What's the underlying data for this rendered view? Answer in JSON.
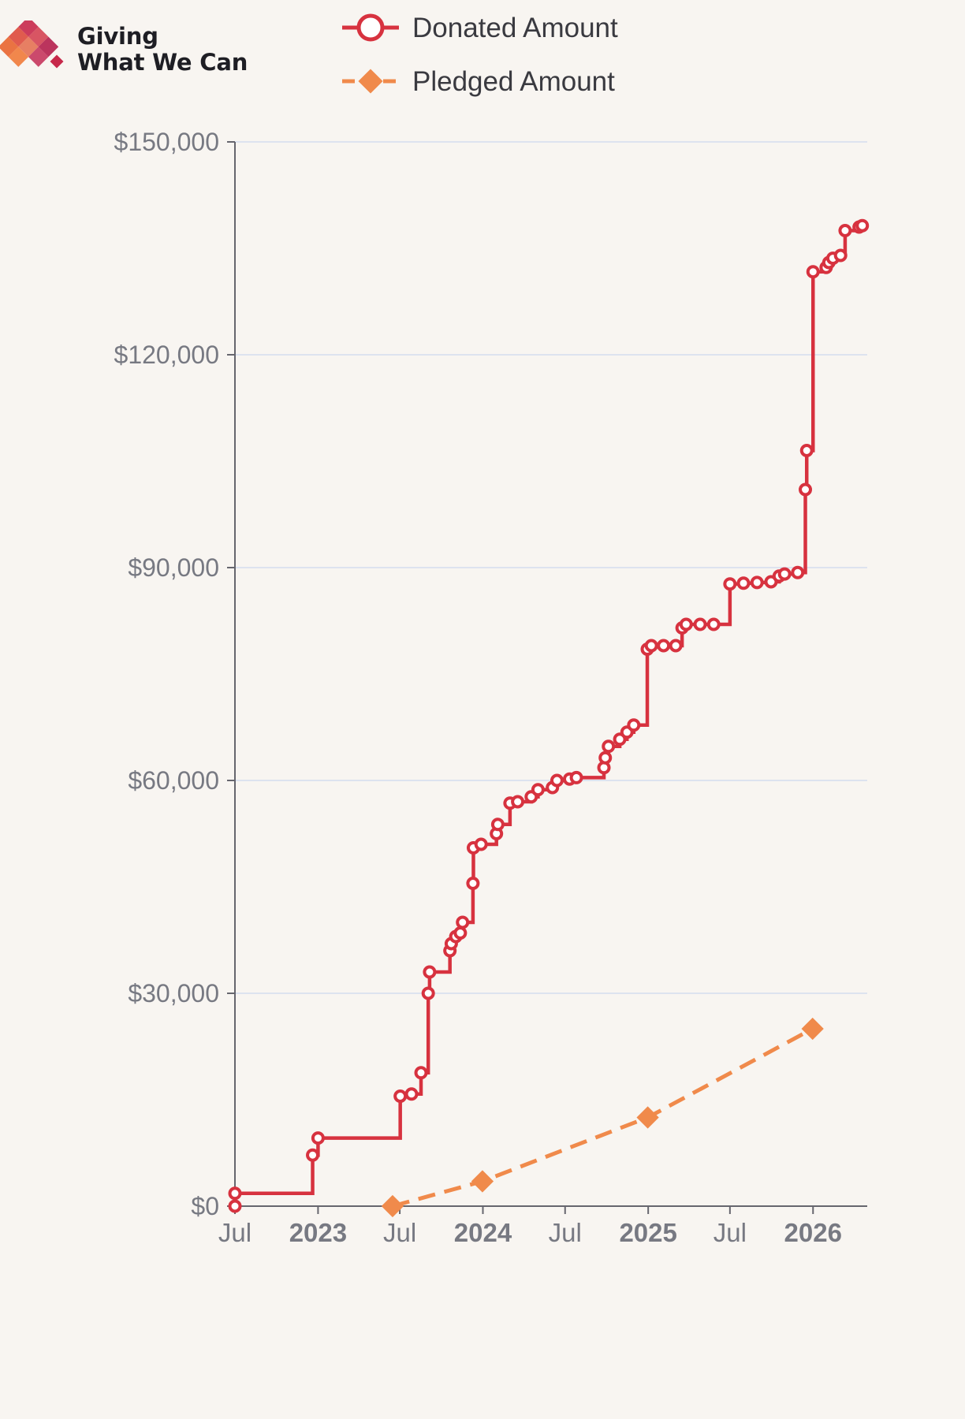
{
  "logo": {
    "line1": "Giving",
    "line2": "What We Can"
  },
  "colors": {
    "background": "#f8f5f1",
    "donated": "#d7323f",
    "pledged": "#f08a4b",
    "grid": "#dde3ef",
    "axis": "#66666e",
    "tick_text": "#777982",
    "logo_red": "#c7284a",
    "logo_orange": "#e8652f"
  },
  "chart_data": {
    "type": "line",
    "legend": {
      "placement": "top-center"
    },
    "grid": {
      "horizontal": true,
      "vertical": false
    },
    "ylim": [
      0,
      150000
    ],
    "yticks": [
      {
        "value": 0,
        "label": "$0"
      },
      {
        "value": 30000,
        "label": "$30,000"
      },
      {
        "value": 60000,
        "label": "$60,000"
      },
      {
        "value": 90000,
        "label": "$90,000"
      },
      {
        "value": 120000,
        "label": "$120,000"
      },
      {
        "value": 150000,
        "label": "$150,000"
      }
    ],
    "xlim": [
      "2022-07-01",
      "2026-05-01"
    ],
    "xticks": [
      {
        "value": "2022-07-01",
        "label": "Jul",
        "bold": false
      },
      {
        "value": "2023-01-01",
        "label": "2023",
        "bold": true
      },
      {
        "value": "2023-07-01",
        "label": "Jul",
        "bold": false
      },
      {
        "value": "2024-01-01",
        "label": "2024",
        "bold": true
      },
      {
        "value": "2024-07-01",
        "label": "Jul",
        "bold": false
      },
      {
        "value": "2025-01-01",
        "label": "2025",
        "bold": true
      },
      {
        "value": "2025-07-01",
        "label": "Jul",
        "bold": false
      },
      {
        "value": "2026-01-01",
        "label": "2026",
        "bold": true
      }
    ],
    "series": [
      {
        "name": "Donated Amount",
        "step": true,
        "marker": "open-circle",
        "points": [
          [
            "2022-07-01",
            0
          ],
          [
            "2022-07-01",
            1800
          ],
          [
            "2022-12-20",
            7200
          ],
          [
            "2023-01-01",
            9600
          ],
          [
            "2023-07-02",
            15500
          ],
          [
            "2023-07-27",
            15800
          ],
          [
            "2023-08-17",
            18800
          ],
          [
            "2023-09-02",
            30000
          ],
          [
            "2023-09-05",
            33000
          ],
          [
            "2023-10-20",
            36000
          ],
          [
            "2023-10-23",
            37000
          ],
          [
            "2023-11-02",
            38000
          ],
          [
            "2023-11-12",
            38500
          ],
          [
            "2023-11-17",
            40000
          ],
          [
            "2023-12-10",
            45500
          ],
          [
            "2023-12-11",
            50500
          ],
          [
            "2023-12-28",
            51000
          ],
          [
            "2024-01-31",
            52500
          ],
          [
            "2024-02-03",
            53800
          ],
          [
            "2024-03-01",
            56800
          ],
          [
            "2024-03-18",
            57000
          ],
          [
            "2024-04-17",
            57700
          ],
          [
            "2024-05-02",
            58700
          ],
          [
            "2024-06-03",
            59000
          ],
          [
            "2024-06-13",
            60000
          ],
          [
            "2024-07-11",
            60200
          ],
          [
            "2024-07-26",
            60400
          ],
          [
            "2024-09-25",
            61800
          ],
          [
            "2024-09-28",
            63200
          ],
          [
            "2024-10-05",
            64800
          ],
          [
            "2024-10-30",
            65800
          ],
          [
            "2024-11-15",
            66800
          ],
          [
            "2024-11-30",
            67800
          ],
          [
            "2024-12-30",
            78500
          ],
          [
            "2025-01-08",
            79000
          ],
          [
            "2025-02-04",
            79000
          ],
          [
            "2025-03-03",
            79000
          ],
          [
            "2025-03-17",
            81500
          ],
          [
            "2025-03-26",
            82000
          ],
          [
            "2025-04-26",
            82000
          ],
          [
            "2025-05-26",
            82000
          ],
          [
            "2025-07-01",
            87700
          ],
          [
            "2025-07-31",
            87800
          ],
          [
            "2025-08-30",
            87900
          ],
          [
            "2025-09-30",
            88000
          ],
          [
            "2025-10-18",
            88800
          ],
          [
            "2025-10-30",
            89100
          ],
          [
            "2025-11-28",
            89300
          ],
          [
            "2025-12-15",
            101000
          ],
          [
            "2025-12-18",
            106500
          ],
          [
            "2026-01-01",
            131700
          ],
          [
            "2026-01-30",
            132300
          ],
          [
            "2026-02-05",
            133000
          ],
          [
            "2026-02-14",
            133600
          ],
          [
            "2026-03-03",
            134000
          ],
          [
            "2026-03-13",
            137500
          ],
          [
            "2026-04-13",
            138000
          ],
          [
            "2026-04-20",
            138200
          ]
        ]
      },
      {
        "name": "Pledged Amount",
        "step": false,
        "marker": "diamond",
        "dash": true,
        "points": [
          [
            "2023-06-15",
            0
          ],
          [
            "2023-12-31",
            3500
          ],
          [
            "2024-12-31",
            12500
          ],
          [
            "2025-12-31",
            25000
          ]
        ]
      }
    ]
  }
}
